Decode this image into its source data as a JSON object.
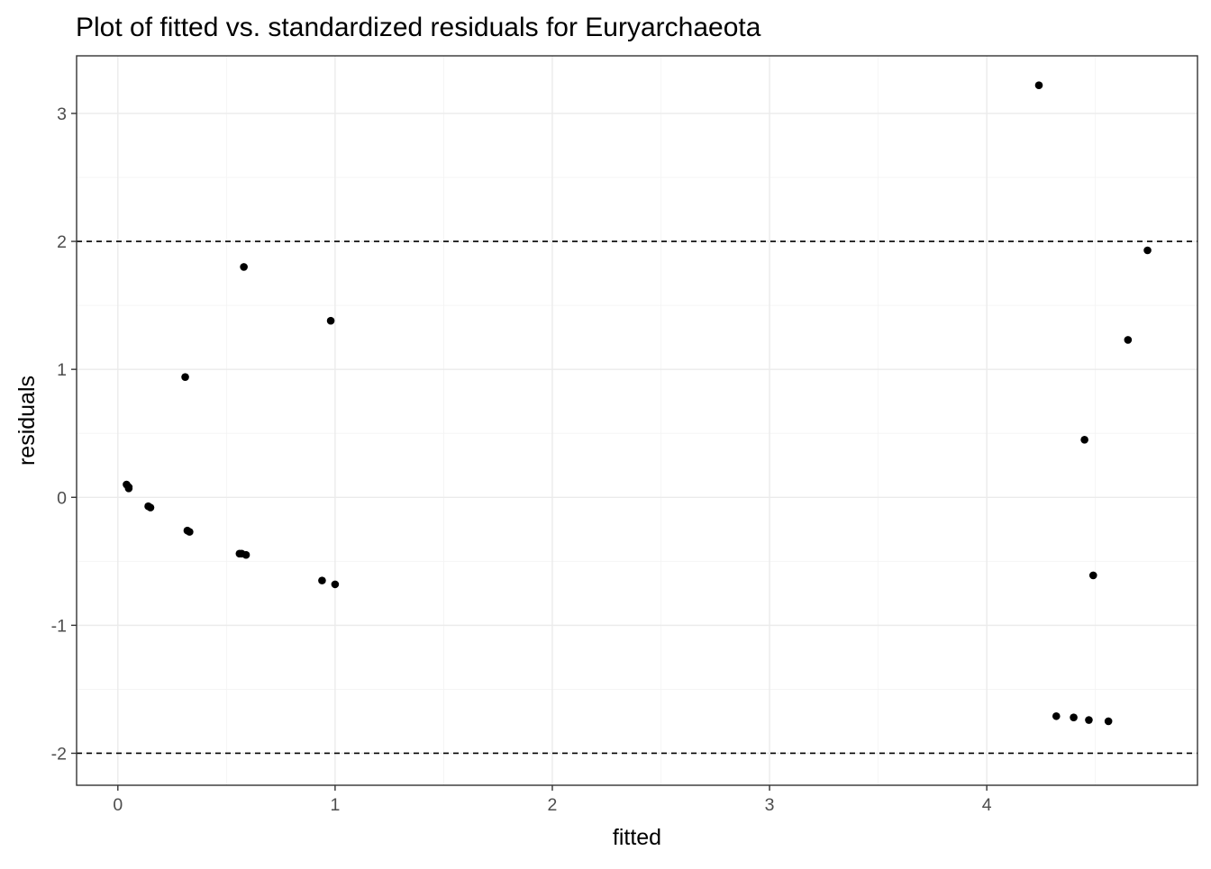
{
  "chart_data": {
    "type": "scatter",
    "title": "Plot of fitted vs. standardized residuals for Euryarchaeota",
    "xlabel": "fitted",
    "ylabel": "residuals",
    "xlim": [
      -0.19,
      4.97
    ],
    "ylim": [
      -2.25,
      3.45
    ],
    "x_ticks": [
      0,
      1,
      2,
      3,
      4
    ],
    "x_tick_labels": [
      "0",
      "1",
      "2",
      "3",
      "4"
    ],
    "y_ticks": [
      -2,
      -1,
      0,
      1,
      2,
      3
    ],
    "y_tick_labels": [
      "-2",
      "-1",
      "0",
      "1",
      "2",
      "3"
    ],
    "grid": true,
    "legend": "none",
    "reference_lines": [
      {
        "axis": "y",
        "value": 2,
        "style": "dashed",
        "color": "#000000"
      },
      {
        "axis": "y",
        "value": -2,
        "style": "dashed",
        "color": "#000000"
      }
    ],
    "point_color": "#000000",
    "series": [
      {
        "points": [
          {
            "x": 0.04,
            "y": 0.1
          },
          {
            "x": 0.05,
            "y": 0.08
          },
          {
            "x": 0.05,
            "y": 0.07
          },
          {
            "x": 0.14,
            "y": -0.07
          },
          {
            "x": 0.15,
            "y": -0.08
          },
          {
            "x": 0.31,
            "y": 0.94
          },
          {
            "x": 0.32,
            "y": -0.26
          },
          {
            "x": 0.33,
            "y": -0.27
          },
          {
            "x": 0.56,
            "y": -0.44
          },
          {
            "x": 0.57,
            "y": -0.44
          },
          {
            "x": 0.58,
            "y": 1.8
          },
          {
            "x": 0.59,
            "y": -0.45
          },
          {
            "x": 0.94,
            "y": -0.65
          },
          {
            "x": 0.98,
            "y": 1.38
          },
          {
            "x": 1.0,
            "y": -0.68
          },
          {
            "x": 4.24,
            "y": 3.22
          },
          {
            "x": 4.32,
            "y": -1.71
          },
          {
            "x": 4.4,
            "y": -1.72
          },
          {
            "x": 4.45,
            "y": 0.45
          },
          {
            "x": 4.47,
            "y": -1.74
          },
          {
            "x": 4.49,
            "y": -0.61
          },
          {
            "x": 4.56,
            "y": -1.75
          },
          {
            "x": 4.65,
            "y": 1.23
          },
          {
            "x": 4.74,
            "y": 1.93
          }
        ]
      }
    ]
  }
}
